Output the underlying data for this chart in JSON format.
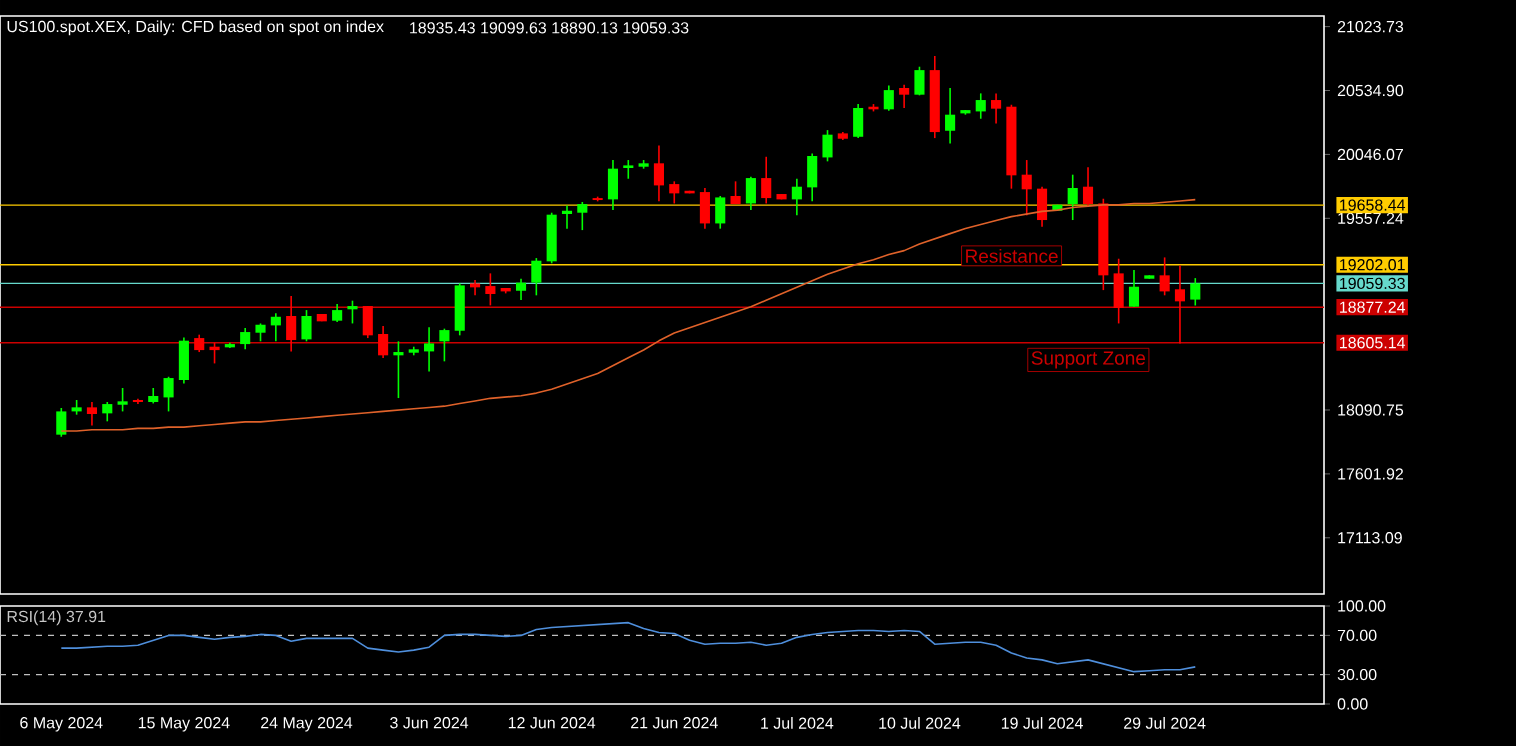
{
  "chart_data": [
    {
      "type": "candlestick",
      "title": "US100.spot.XEX, Daily:  CFD based on spot on index",
      "subtitle": "18935.43 19099.63 18890.13 19059.33",
      "categories": [
        null,
        null,
        null,
        null,
        null,
        null,
        null,
        null,
        null,
        null,
        null,
        null,
        null,
        null,
        null,
        null,
        null,
        null,
        null,
        null,
        null,
        null,
        null,
        null,
        null,
        null,
        null,
        null,
        null,
        null,
        null,
        null,
        null,
        null,
        null,
        null,
        null,
        null,
        null,
        null,
        null,
        null,
        null,
        null,
        null,
        null,
        null,
        null,
        null,
        null,
        null,
        null,
        null,
        null,
        null,
        null,
        null,
        null,
        null,
        null,
        null,
        null,
        null,
        null,
        null,
        null,
        null,
        null,
        null,
        null,
        null,
        null,
        null,
        null,
        null
      ],
      "tick_labels": "y",
      "ohlc": [
        [
          17902,
          18106,
          17886,
          18080
        ],
        [
          18080,
          18167,
          18055,
          18111
        ],
        [
          18111,
          18152,
          17973,
          18060
        ],
        [
          18065,
          18152,
          18004,
          18136
        ],
        [
          18131,
          18259,
          18080,
          18157
        ],
        [
          18167,
          18177,
          18136,
          18152
        ],
        [
          18152,
          18259,
          18141,
          18198
        ],
        [
          18187,
          18345,
          18080,
          18335
        ],
        [
          18320,
          18646,
          18294,
          18621
        ],
        [
          18641,
          18667,
          18534,
          18549
        ],
        [
          18575,
          18606,
          18447,
          18549
        ],
        [
          18570,
          18606,
          18565,
          18595
        ],
        [
          18595,
          18718,
          18555,
          18687
        ],
        [
          18682,
          18753,
          18616,
          18743
        ],
        [
          18738,
          18830,
          18616,
          18804
        ],
        [
          18810,
          18963,
          18539,
          18626
        ],
        [
          18631,
          18855,
          18616,
          18810
        ],
        [
          18825,
          18825,
          18769,
          18769
        ],
        [
          18774,
          18901,
          18764,
          18855
        ],
        [
          18861,
          18927,
          18753,
          18886
        ],
        [
          18886,
          18886,
          18641,
          18662
        ],
        [
          18672,
          18733,
          18488,
          18509
        ],
        [
          18509,
          18616,
          18182,
          18534
        ],
        [
          18529,
          18575,
          18509,
          18555
        ],
        [
          18539,
          18723,
          18386,
          18600
        ],
        [
          18616,
          18713,
          18463,
          18702
        ],
        [
          18697,
          19059,
          18662,
          19044
        ],
        [
          19059,
          19085,
          18968,
          19029
        ],
        [
          19039,
          19136,
          18891,
          18978
        ],
        [
          19024,
          19024,
          18983,
          18998
        ],
        [
          19003,
          19095,
          18932,
          19065
        ],
        [
          19065,
          19253,
          18968,
          19233
        ],
        [
          19228,
          19600,
          19213,
          19585
        ],
        [
          19590,
          19656,
          19478,
          19615
        ],
        [
          19600,
          19682,
          19467,
          19666
        ],
        [
          19712,
          19723,
          19687,
          19697
        ],
        [
          19702,
          20003,
          19620,
          19937
        ],
        [
          19942,
          20003,
          19860,
          19962
        ],
        [
          19952,
          20003,
          19937,
          19978
        ],
        [
          19978,
          20115,
          19687,
          19809
        ],
        [
          19819,
          19840,
          19671,
          19748
        ],
        [
          19768,
          19768,
          19748,
          19748
        ],
        [
          19758,
          19789,
          19478,
          19518
        ],
        [
          19518,
          19728,
          19478,
          19717
        ],
        [
          19728,
          19840,
          19666,
          19666
        ],
        [
          19671,
          19875,
          19620,
          19865
        ],
        [
          19865,
          20028,
          19671,
          19712
        ],
        [
          19743,
          19743,
          19702,
          19702
        ],
        [
          19702,
          19860,
          19580,
          19799
        ],
        [
          19794,
          20054,
          19687,
          20034
        ],
        [
          20023,
          20232,
          19993,
          20197
        ],
        [
          20207,
          20217,
          20156,
          20166
        ],
        [
          20181,
          20431,
          20171,
          20401
        ],
        [
          20411,
          20431,
          20375,
          20391
        ],
        [
          20391,
          20574,
          20380,
          20538
        ],
        [
          20554,
          20579,
          20401,
          20503
        ],
        [
          20503,
          20717,
          20498,
          20691
        ],
        [
          20691,
          20799,
          20171,
          20217
        ],
        [
          20227,
          20554,
          20130,
          20350
        ],
        [
          20360,
          20385,
          20350,
          20385
        ],
        [
          20375,
          20513,
          20319,
          20462
        ],
        [
          20462,
          20513,
          20283,
          20396
        ],
        [
          20411,
          20426,
          19784,
          19886
        ],
        [
          19891,
          20003,
          19580,
          19779
        ],
        [
          19784,
          19799,
          19493,
          19544
        ],
        [
          19615,
          19661,
          19615,
          19661
        ],
        [
          19666,
          19891,
          19544,
          19789
        ],
        [
          19799,
          19947,
          19646,
          19666
        ],
        [
          19671,
          19707,
          19008,
          19121
        ],
        [
          19136,
          19248,
          18753,
          18871
        ],
        [
          18881,
          19161,
          18881,
          19034
        ],
        [
          19095,
          19121,
          19095,
          19121
        ],
        [
          19121,
          19258,
          18968,
          18998
        ],
        [
          19014,
          19197,
          18600,
          18922
        ],
        [
          18935.43,
          19099.63,
          18890.13,
          19059.33
        ]
      ],
      "series": [
        {
          "type": "line",
          "color": "#e0622a",
          "values": [
            17930,
            17930,
            17940,
            17940,
            17940,
            17950,
            17950,
            17960,
            17960,
            17970,
            17980,
            17990,
            18000,
            18000,
            18010,
            18020,
            18030,
            18040,
            18050,
            18060,
            18070,
            18080,
            18090,
            18100,
            18110,
            18120,
            18140,
            18160,
            18180,
            18190,
            18200,
            18220,
            18250,
            18290,
            18330,
            18370,
            18430,
            18490,
            18550,
            18620,
            18680,
            18720,
            18760,
            18800,
            18840,
            18880,
            18930,
            18980,
            19030,
            19080,
            19130,
            19170,
            19210,
            19240,
            19280,
            19310,
            19360,
            19400,
            19440,
            19480,
            19510,
            19540,
            19570,
            19590,
            19610,
            19620,
            19640,
            19650,
            19660,
            19660,
            19670,
            19670,
            19680,
            19690,
            19700
          ]
        }
      ],
      "ylim": [
        16683,
        21105
      ],
      "yticks": [
        21023.73,
        {
          "value": 20534.9,
          "label": "20534.90"
        },
        20046.07,
        19557.24,
        18090.75,
        17601.92,
        17113.09
      ],
      "ref_lines": [
        {
          "axis": "y",
          "value": 19658.44,
          "label": "19658.44",
          "color": "#ffcc00"
        },
        {
          "axis": "y",
          "value": 19202.01,
          "label": "19202.01",
          "color": "#ffcc00"
        },
        {
          "axis": "y",
          "value": 19059.33,
          "label": "19059.33",
          "color": "#66d9cc"
        },
        {
          "axis": "y",
          "value": 18877.24,
          "label": "18877.24",
          "color": "#cc0000"
        },
        {
          "axis": "y",
          "value": 18605.14,
          "label": "18605.14",
          "color": "#cc0000"
        }
      ],
      "annotations": [
        "Resistance",
        "Support Zone"
      ]
    },
    {
      "type": "line",
      "categories": [
        "6 May 2024",
        null,
        null,
        null,
        null,
        null,
        null,
        null,
        "15 May 2024",
        null,
        null,
        null,
        null,
        null,
        null,
        null,
        "24 May 2024",
        null,
        null,
        null,
        null,
        null,
        null,
        null,
        "3 Jun 2024",
        null,
        null,
        null,
        null,
        null,
        null,
        null,
        "12 Jun 2024",
        null,
        null,
        null,
        null,
        null,
        null,
        null,
        "21 Jun 2024",
        null,
        null,
        null,
        null,
        null,
        null,
        null,
        "1 Jul 2024",
        null,
        null,
        null,
        null,
        null,
        null,
        null,
        "10 Jul 2024",
        null,
        null,
        null,
        null,
        null,
        null,
        null,
        "19 Jul 2024",
        null,
        null,
        null,
        null,
        null,
        null,
        null,
        "29 Jul 2024",
        null,
        null
      ],
      "series": [
        {
          "name": "RSI(14) 37.91",
          "color": "#4f8fdc",
          "values": [
            57,
            57,
            58,
            59,
            59,
            60,
            65,
            70,
            70,
            68,
            66,
            68,
            69,
            71,
            70,
            64,
            67,
            67,
            67,
            67,
            57,
            55,
            53,
            55,
            58,
            70,
            71,
            71,
            70,
            69,
            70,
            76,
            78,
            79,
            80,
            81,
            82,
            83,
            77,
            73,
            72,
            65,
            61,
            62,
            62,
            63,
            60,
            62,
            68,
            71,
            73,
            74,
            75,
            75,
            74,
            75,
            74,
            61,
            62,
            63,
            63,
            60,
            52,
            47,
            45,
            41,
            43,
            45,
            41,
            37,
            33,
            34,
            35,
            35,
            37.91
          ]
        }
      ],
      "ylim": [
        0,
        100
      ],
      "yticks": [
        {
          "value": 100,
          "label": "100.00"
        },
        {
          "value": 70,
          "label": "70.00"
        },
        {
          "value": 30,
          "label": "30.00"
        },
        {
          "value": 0,
          "label": "0.00"
        }
      ],
      "ref_lines": [
        {
          "axis": "y",
          "value": 70,
          "line_style": "dashed",
          "color": "#c0c0c0"
        },
        {
          "axis": "y",
          "value": 30,
          "line_style": "dashed",
          "color": "#c0c0c0"
        }
      ]
    }
  ]
}
